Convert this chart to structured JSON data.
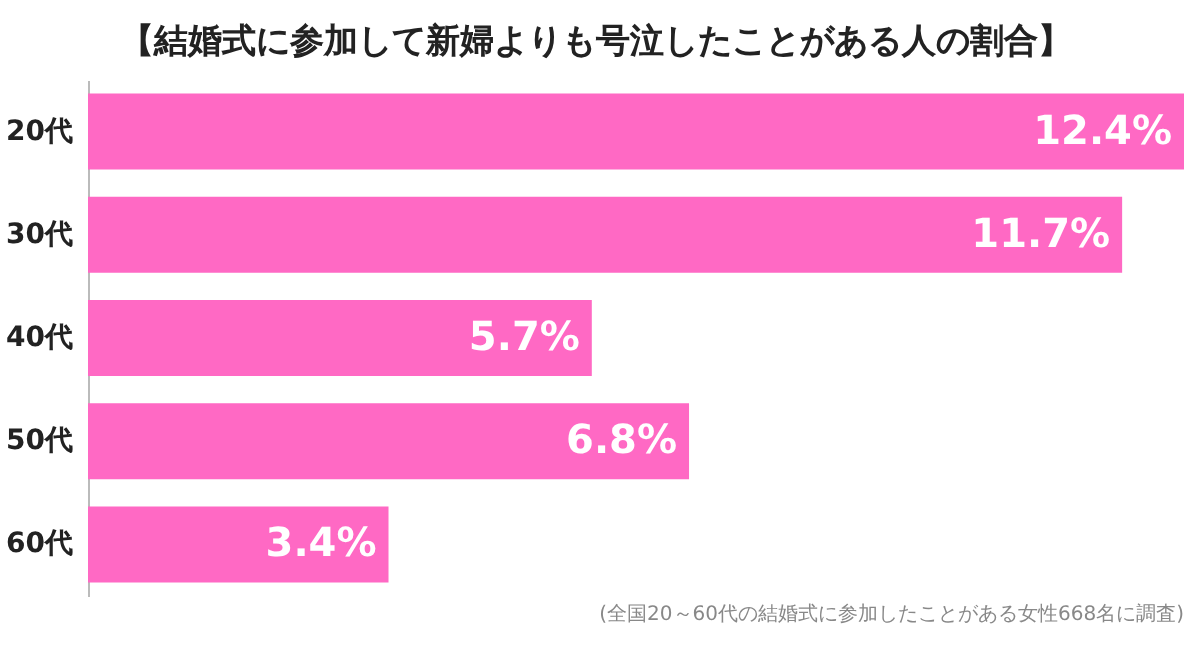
{
  "chart_data": {
    "type": "bar",
    "orientation": "horizontal",
    "title": "【結婚式に参加して新婦よりも号泣したことがある人の割合】",
    "categories": [
      "20代",
      "30代",
      "40代",
      "50代",
      "60代"
    ],
    "values": [
      12.4,
      11.7,
      5.7,
      6.8,
      3.4
    ],
    "value_labels": [
      "12.4%",
      "11.7%",
      "5.7%",
      "6.8%",
      "3.4%"
    ],
    "color": "#ff69c4",
    "grid": false,
    "annotations": [
      "(全国20～60代の結婚式に参加したことがある女性668名に調査)"
    ]
  }
}
